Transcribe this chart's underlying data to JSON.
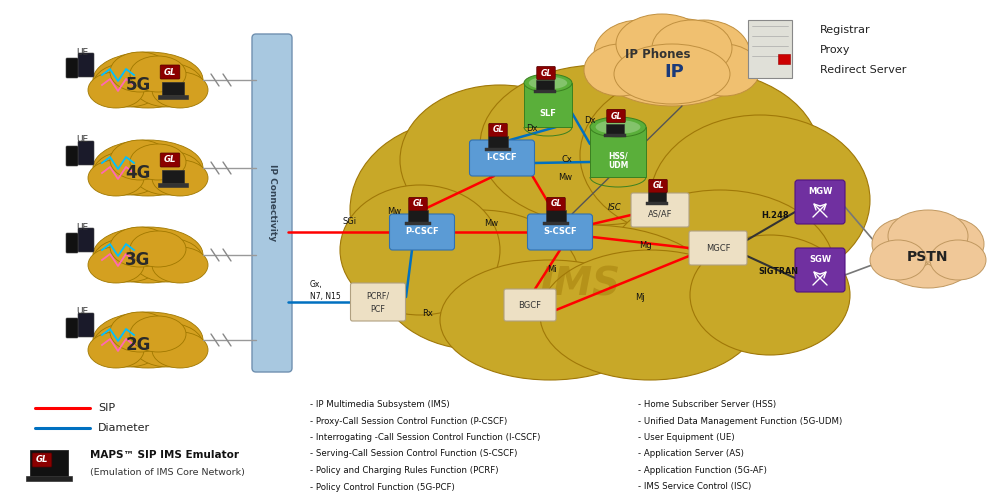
{
  "bg_color": "#ffffff",
  "ims_cloud_color": "#C8A020",
  "ims_cloud_edge": "#A07800",
  "ip_phones_cloud_color": "#F0C070",
  "ip_phones_cloud_edge": "#C09040",
  "pstn_cloud_color": "#F0C898",
  "pstn_cloud_edge": "#C09860",
  "ue_cloud_color": "#D4A020",
  "ue_cloud_edge": "#A07800",
  "ip_bar_color": "#A8C8E0",
  "ip_bar_edge": "#7090B0",
  "box_blue": "#5B9BD5",
  "box_blue_edge": "#3070B0",
  "box_green": "#5AAF3A",
  "box_green_edge": "#3A8020",
  "box_tan": "#EDE0C4",
  "box_tan_edge": "#B0A080",
  "box_purple": "#7030A0",
  "box_purple_edge": "#501080",
  "gl_red": "#8B0000",
  "sip_color": "#FF0000",
  "diameter_color": "#0070C0",
  "abbrev_left": [
    "- IP Multimedia Subsystem (IMS)",
    "- Proxy-Call Session Control Function (P-CSCF)",
    "- Interrogating -Call Session Control Function (I-CSCF)",
    "- Serving-Call Session Control Function (S-CSCF)",
    "- Policy and Charging Rules Function (PCRF)",
    "- Policy Control Function (5G-PCF)"
  ],
  "abbrev_right": [
    "- Home Subscriber Server (HSS)",
    "- Unified Data Management Function (5G-UDM)",
    "- User Equipment (UE)",
    "- Application Server (AS)",
    "- Application Function (5G-AF)",
    "- IMS Service Control (ISC)"
  ]
}
